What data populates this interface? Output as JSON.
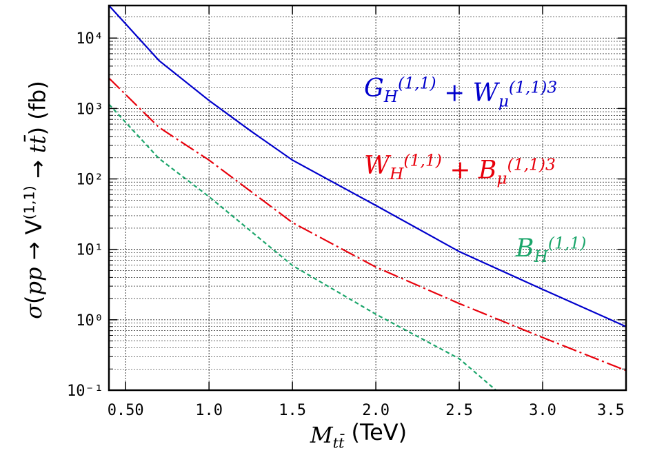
{
  "chart_data": {
    "type": "line",
    "y_label_parts": [
      {
        "text": "σ",
        "pos": "base",
        "style": "math"
      },
      {
        "text": "(",
        "pos": "base",
        "style": "roman"
      },
      {
        "text": "pp",
        "pos": "base",
        "style": "math"
      },
      {
        "text": " → V",
        "pos": "base",
        "style": "roman"
      },
      {
        "text": "(1,1)",
        "pos": "sup",
        "style": "roman"
      },
      {
        "text": " → ",
        "pos": "base",
        "style": "roman"
      },
      {
        "text": "tt̄",
        "pos": "base",
        "style": "math"
      },
      {
        "text": ") (fb)",
        "pos": "base",
        "style": "roman"
      }
    ],
    "x_label_parts": [
      {
        "text": "M",
        "pos": "base",
        "style": "math"
      },
      {
        "text": "tt̄",
        "pos": "sub",
        "style": "math"
      },
      {
        "text": " (TeV)",
        "pos": "base",
        "style": "roman"
      }
    ],
    "xlim": [
      0.4,
      3.5
    ],
    "xticks": [
      {
        "value": 0.5,
        "label": "0.50"
      },
      {
        "value": 1.0,
        "label": "1.0"
      },
      {
        "value": 1.5,
        "label": "1.5"
      },
      {
        "value": 2.0,
        "label": "2.0"
      },
      {
        "value": 2.5,
        "label": "2.5"
      },
      {
        "value": 3.0,
        "label": "3.0"
      },
      {
        "value": 3.5,
        "label": "3.5"
      }
    ],
    "ylim": [
      0.1,
      29000
    ],
    "log_y": true,
    "yticks": [
      {
        "value": 0.1,
        "label": "10⁻¹"
      },
      {
        "value": 1,
        "label": "10⁰"
      },
      {
        "value": 10,
        "label": "10¹"
      },
      {
        "value": 100,
        "label": "10²"
      },
      {
        "value": 1000,
        "label": "10³"
      },
      {
        "value": 10000,
        "label": "10⁴"
      }
    ],
    "grid": true,
    "minor_grid": true,
    "series": [
      {
        "color": "#0000cc",
        "dash": "solid",
        "label_parts": [
          {
            "text": "G",
            "pos": "base"
          },
          {
            "text": "H",
            "pos": "sub"
          },
          {
            "text": "(1,1)",
            "pos": "sup"
          },
          {
            "text": " + W",
            "pos": "base"
          },
          {
            "text": "μ",
            "pos": "sub"
          },
          {
            "text": "(1,1)3",
            "pos": "sup"
          }
        ],
        "x": [
          0.4,
          0.7,
          1.0,
          1.25,
          1.5,
          2.0,
          2.5,
          3.0,
          3.5
        ],
        "values": [
          29000,
          4800,
          1300,
          480,
          185,
          42,
          9.3,
          2.7,
          0.8
        ]
      },
      {
        "color": "#e8000b",
        "dash": "long",
        "label_parts": [
          {
            "text": "W",
            "pos": "base"
          },
          {
            "text": "H",
            "pos": "sub"
          },
          {
            "text": "(1,1)",
            "pos": "sup"
          },
          {
            "text": " + B",
            "pos": "base"
          },
          {
            "text": "μ",
            "pos": "sub"
          },
          {
            "text": "(1,1)3",
            "pos": "sup"
          }
        ],
        "x": [
          0.4,
          0.7,
          1.0,
          1.5,
          2.0,
          2.5,
          3.0,
          3.5
        ],
        "values": [
          2700,
          540,
          185,
          24,
          5.6,
          1.7,
          0.56,
          0.19
        ]
      },
      {
        "color": "#1aa56a",
        "dash": "short",
        "label_parts": [
          {
            "text": "B",
            "pos": "base"
          },
          {
            "text": "H",
            "pos": "sub"
          },
          {
            "text": "(1,1)",
            "pos": "sup"
          }
        ],
        "x": [
          0.4,
          0.7,
          1.0,
          1.5,
          2.0,
          2.5,
          2.72
        ],
        "values": [
          1150,
          195,
          56,
          5.9,
          1.2,
          0.28,
          0.1
        ]
      }
    ]
  }
}
